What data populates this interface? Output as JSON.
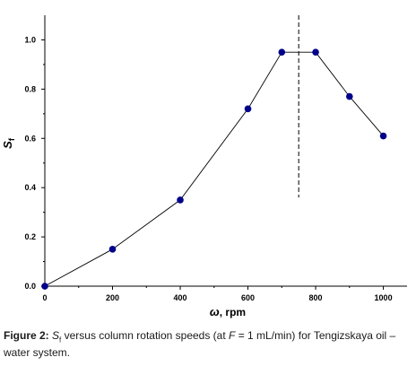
{
  "chart_data": {
    "type": "line",
    "x": [
      0,
      200,
      400,
      600,
      700,
      800,
      900,
      1000
    ],
    "series": [
      {
        "values": [
          0.0,
          0.15,
          0.35,
          0.72,
          0.95,
          0.95,
          0.77,
          0.61
        ],
        "color": "#00008b"
      }
    ],
    "xlim": [
      0,
      1070
    ],
    "ylim": [
      0,
      1.1
    ],
    "xticks": [
      0,
      200,
      400,
      600,
      800,
      1000
    ],
    "yticks": [
      0.0,
      0.2,
      0.4,
      0.6,
      0.8,
      1.0
    ],
    "xtick_labels": [
      "0",
      "200",
      "400",
      "600",
      "800",
      "1000"
    ],
    "ytick_labels": [
      "0.0",
      "0.2",
      "0.4",
      "0.6",
      "0.8",
      "1.0"
    ],
    "xlabel": {
      "symbol": "ω",
      "text": ", rpm"
    },
    "ylabel": {
      "symbol": "S",
      "subscript": "f"
    },
    "vertical_reference_line_x": 750,
    "grid": false,
    "marker_color": "#00008b",
    "line_color": "#000000"
  },
  "caption": {
    "figure_label": "Figure 2:",
    "symbol": "S",
    "subscript": "f",
    "text_1": " versus column rotation speeds (at ",
    "var": "F",
    "text_2": " = 1 mL/min) for Tengizskaya oil – water system."
  }
}
